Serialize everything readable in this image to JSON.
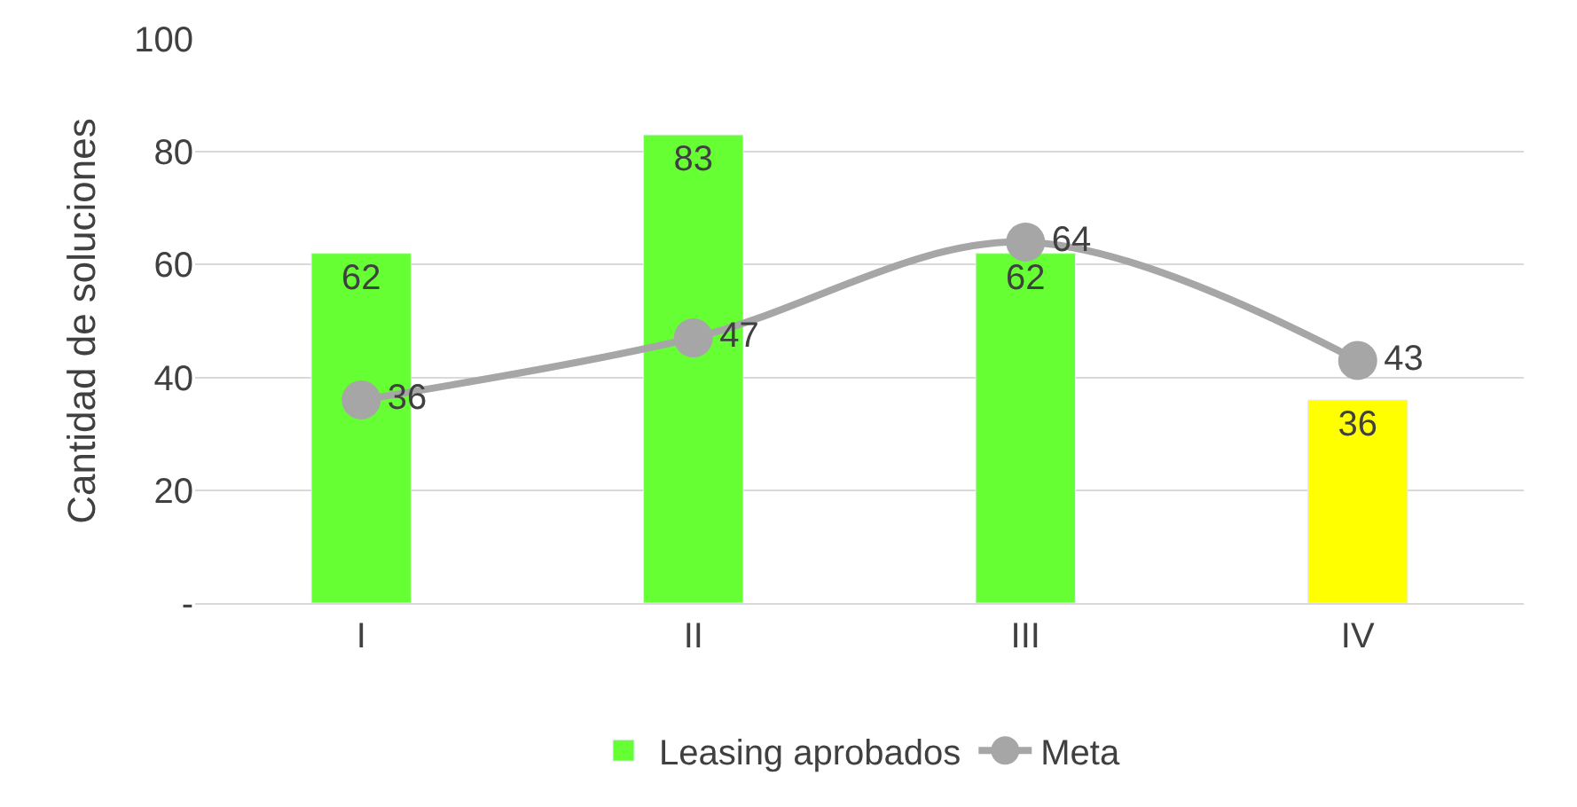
{
  "chart_data": {
    "type": "bar",
    "ylabel": "Cantidad de soluciones",
    "categories": [
      "I",
      "II",
      "III",
      "IV"
    ],
    "series": [
      {
        "name": "Leasing aprobados",
        "colors": [
          "#66ff33",
          "#66ff33",
          "#66ff33",
          "#ffff00"
        ],
        "values": [
          62,
          83,
          62,
          36
        ]
      },
      {
        "name": "Meta",
        "type": "line",
        "color": "#a6a6a6",
        "values": [
          36,
          47,
          64,
          43
        ]
      }
    ],
    "ylim": [
      0,
      100
    ],
    "yticks": [
      {
        "value": 0,
        "label": "-"
      },
      20,
      40,
      60,
      80,
      100
    ],
    "grid": "y",
    "legend": "bottom",
    "marker": "circle",
    "line_style": "solid",
    "data_labels": true
  }
}
